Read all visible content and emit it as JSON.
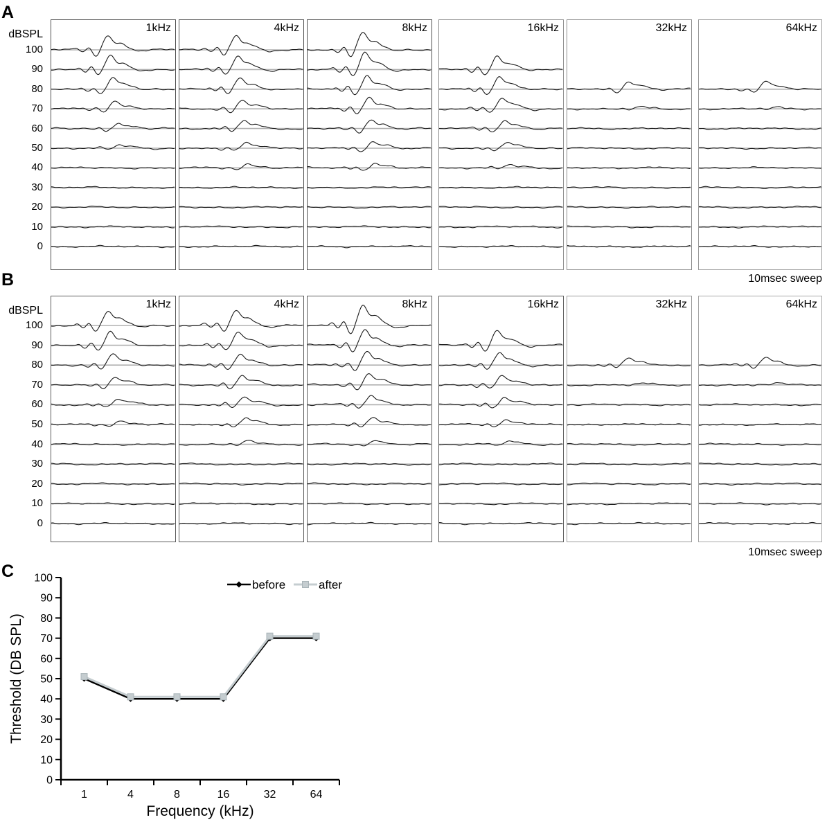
{
  "colors": {
    "trace": "#1a1a1a",
    "baseline_gray": "#b0b0b0",
    "before_series": "#000000",
    "after_series": "#c5cdd0",
    "after_marker_edge": "#a9b4b8"
  },
  "panels": {
    "A": {
      "label": "A",
      "y_axis_title": "dBSPL",
      "sweep_label": "10msec sweep",
      "levels": [
        100,
        90,
        80,
        70,
        60,
        50,
        40,
        30,
        20,
        10,
        0
      ],
      "boxes": [
        {
          "freq_label": "1kHz",
          "top_level": 100,
          "threshold": 50
        },
        {
          "freq_label": "4kHz",
          "top_level": 100,
          "threshold": 40
        },
        {
          "freq_label": "8kHz",
          "top_level": 100,
          "threshold": 40
        },
        {
          "freq_label": "16kHz",
          "top_level": 90,
          "threshold": 40
        },
        {
          "freq_label": "32kHz",
          "top_level": 80,
          "threshold": 70
        },
        {
          "freq_label": "64kHz",
          "top_level": 80,
          "threshold": 70
        }
      ]
    },
    "B": {
      "label": "B",
      "y_axis_title": "dBSPL",
      "sweep_label": "10msec sweep",
      "levels": [
        100,
        90,
        80,
        70,
        60,
        50,
        40,
        30,
        20,
        10,
        0
      ],
      "boxes": [
        {
          "freq_label": "1kHz",
          "top_level": 100,
          "threshold": 50
        },
        {
          "freq_label": "4kHz",
          "top_level": 100,
          "threshold": 40
        },
        {
          "freq_label": "8kHz",
          "top_level": 100,
          "threshold": 40
        },
        {
          "freq_label": "16kHz",
          "top_level": 90,
          "threshold": 40
        },
        {
          "freq_label": "32kHz",
          "top_level": 80,
          "threshold": 70
        },
        {
          "freq_label": "64kHz",
          "top_level": 80,
          "threshold": 70
        }
      ]
    },
    "C": {
      "label": "C"
    }
  },
  "chart_data": [
    {
      "type": "line",
      "panel": "C",
      "title": "",
      "xlabel": "Frequency (kHz)",
      "ylabel": "Threshold (DB SPL)",
      "x_categories": [
        "1",
        "4",
        "8",
        "16",
        "32",
        "64"
      ],
      "ylim": [
        0,
        100
      ],
      "ytick_step": 10,
      "grid": false,
      "legend_position": "top",
      "series": [
        {
          "name": "before",
          "marker": "diamond",
          "color": "#000000",
          "values": [
            50,
            40,
            40,
            40,
            70,
            70
          ]
        },
        {
          "name": "after",
          "marker": "square",
          "color": "#c5cdd0",
          "values": [
            51,
            41,
            41,
            41,
            71,
            71
          ]
        }
      ]
    },
    {
      "type": "waveform-grid",
      "panel": "A",
      "description": "ABR traces, 10msec sweep; stacked waveforms per stimulus level (dBSPL), response visible at and above threshold",
      "frequencies_khz": [
        1,
        4,
        8,
        16,
        32,
        64
      ],
      "levels_db": [
        100,
        90,
        80,
        70,
        60,
        50,
        40,
        30,
        20,
        10,
        0
      ],
      "top_trace_level_db": {
        "1kHz": 100,
        "4kHz": 100,
        "8kHz": 100,
        "16kHz": 90,
        "32kHz": 80,
        "64kHz": 80
      },
      "response_threshold_db": {
        "1kHz": 50,
        "4kHz": 40,
        "8kHz": 40,
        "16kHz": 40,
        "32kHz": 70,
        "64kHz": 70
      }
    },
    {
      "type": "waveform-grid",
      "panel": "B",
      "description": "ABR traces, 10msec sweep; stacked waveforms per stimulus level (dBSPL), response visible at and above threshold",
      "frequencies_khz": [
        1,
        4,
        8,
        16,
        32,
        64
      ],
      "levels_db": [
        100,
        90,
        80,
        70,
        60,
        50,
        40,
        30,
        20,
        10,
        0
      ],
      "top_trace_level_db": {
        "1kHz": 100,
        "4kHz": 100,
        "8kHz": 100,
        "16kHz": 90,
        "32kHz": 80,
        "64kHz": 80
      },
      "response_threshold_db": {
        "1kHz": 50,
        "4kHz": 40,
        "8kHz": 40,
        "16kHz": 40,
        "32kHz": 70,
        "64kHz": 70
      }
    }
  ]
}
